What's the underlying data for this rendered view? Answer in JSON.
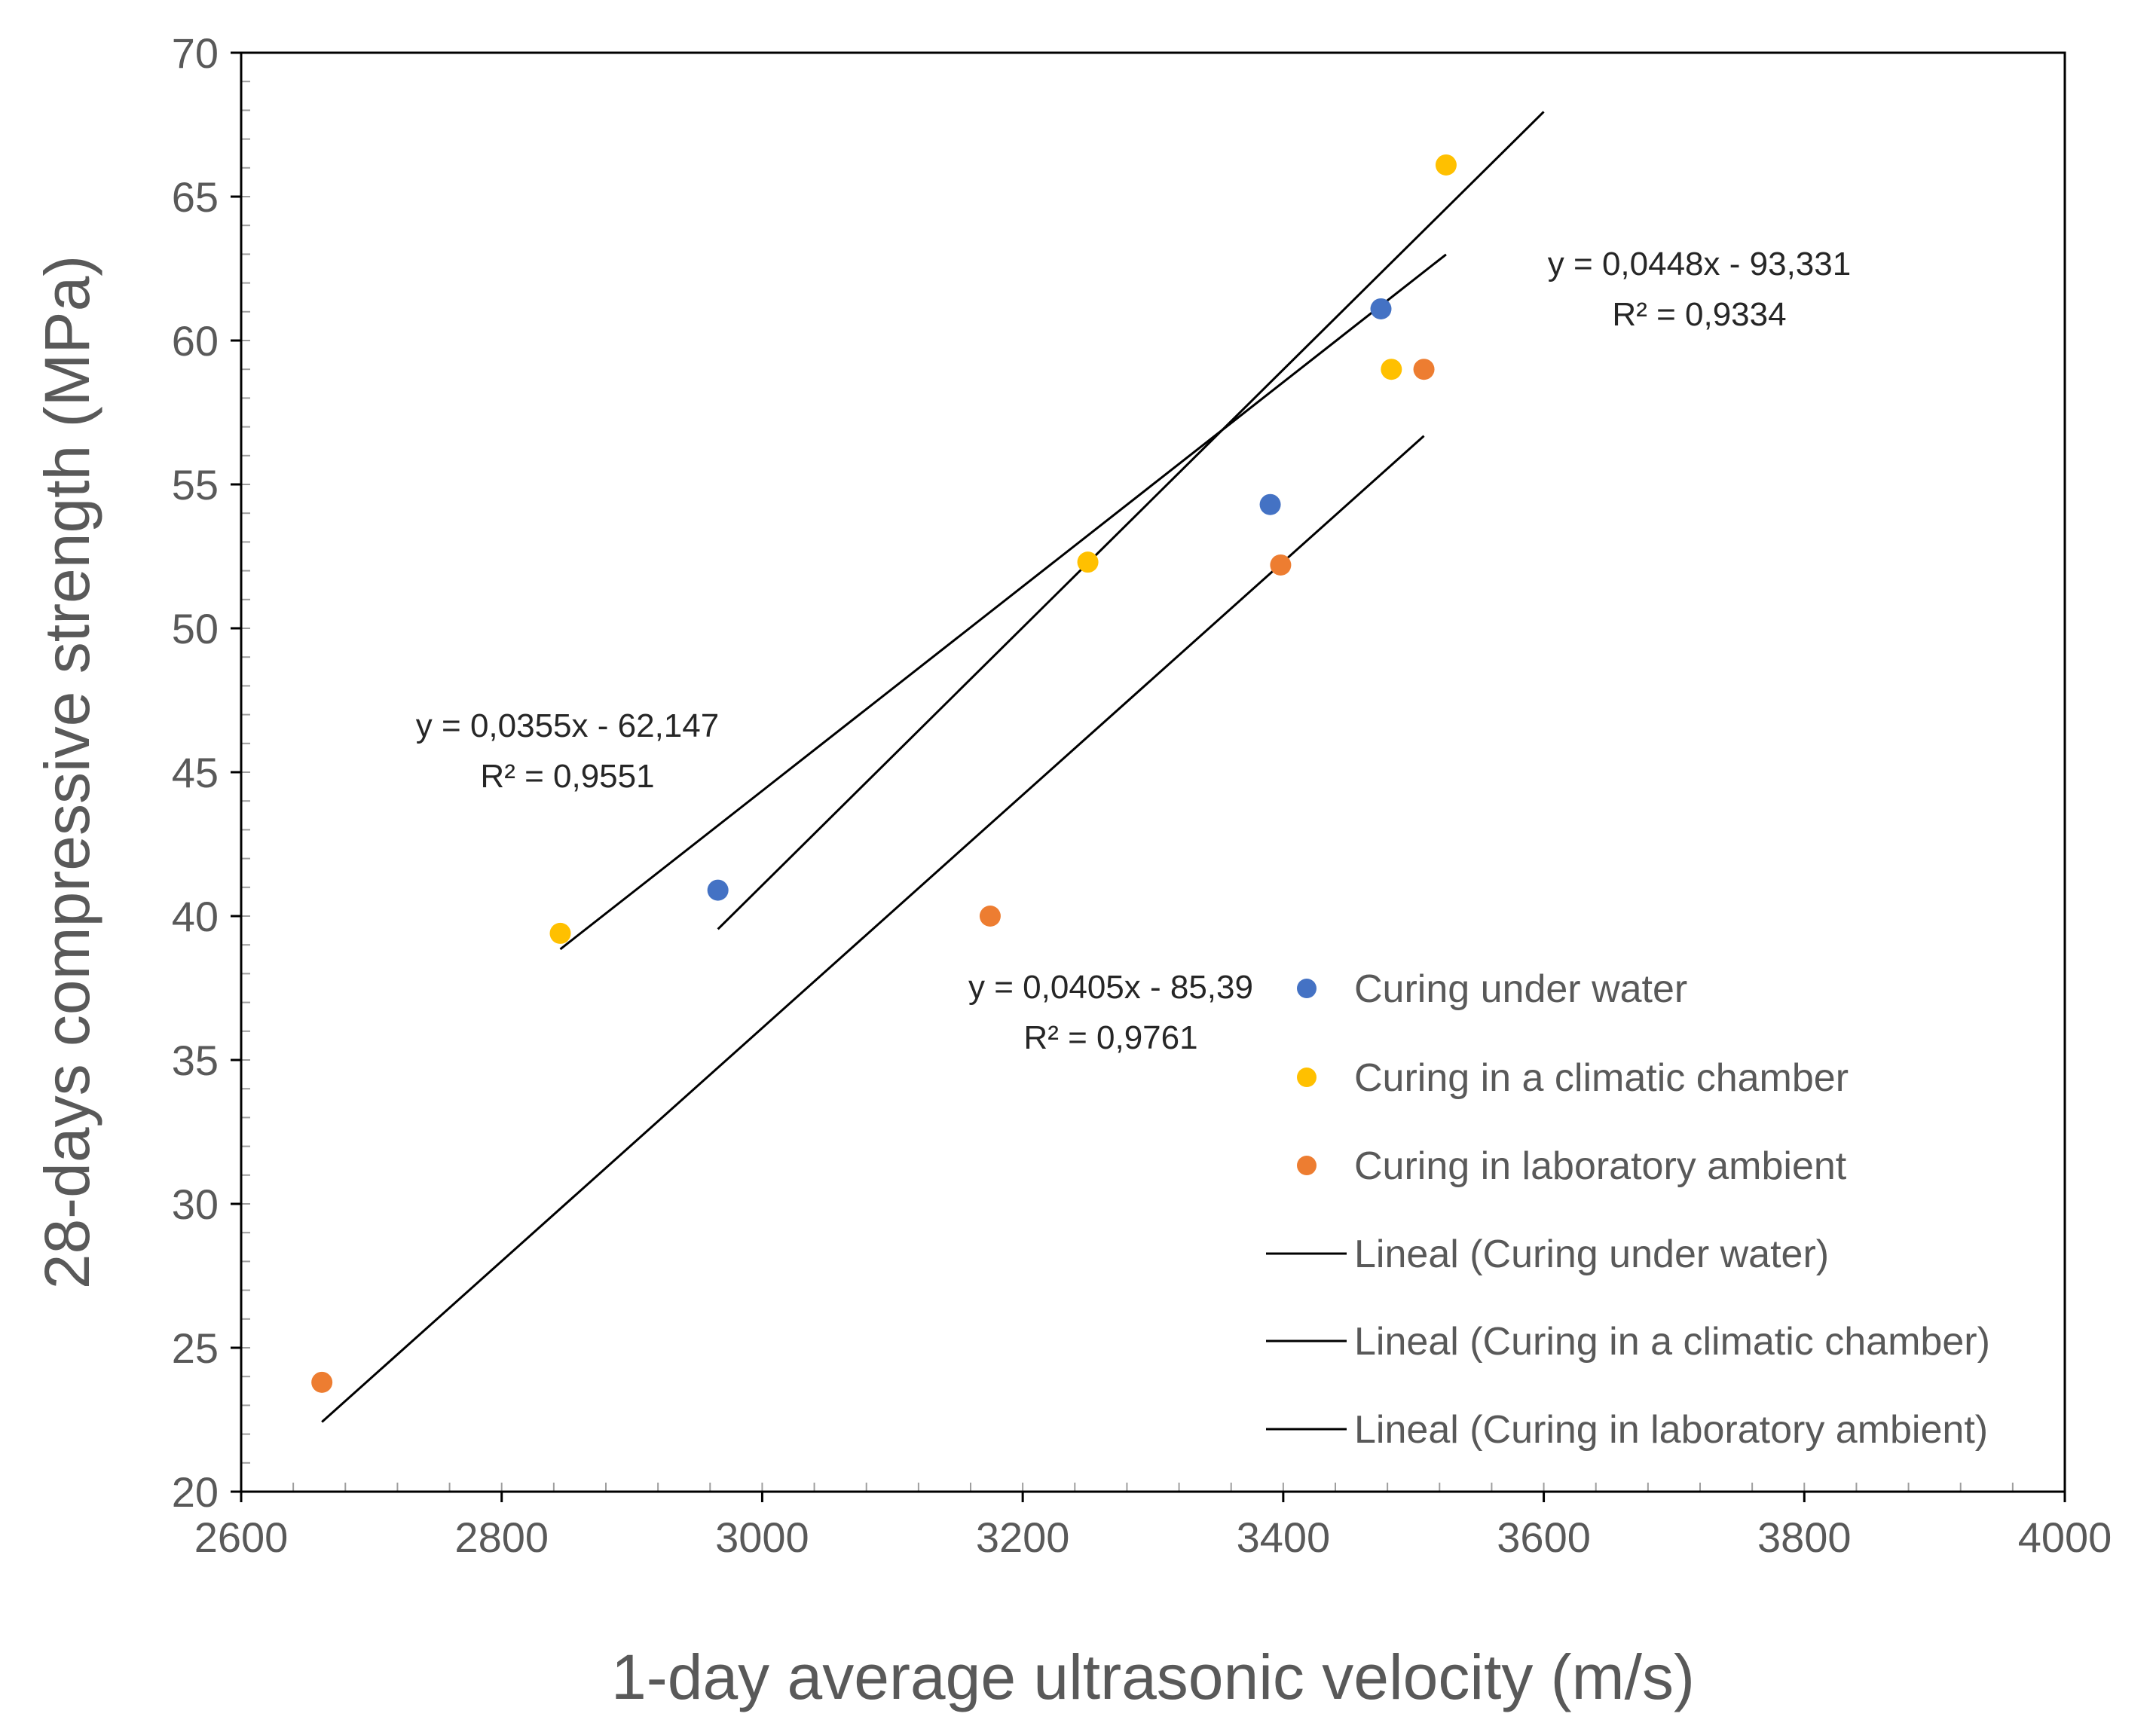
{
  "chart_data": {
    "type": "scatter",
    "title": "",
    "xlabel": "1-day average ultrasonic velocity (m/s)",
    "ylabel": "28-days compressive strength (MPa)",
    "xlim": [
      2600,
      4000
    ],
    "ylim": [
      20,
      70
    ],
    "x_ticks": [
      2600,
      2800,
      3000,
      3200,
      3400,
      3600,
      3800,
      4000
    ],
    "y_ticks": [
      20,
      25,
      30,
      35,
      40,
      45,
      50,
      55,
      60,
      65,
      70
    ],
    "x_tick_labels": [
      "2600",
      "2800",
      "3000",
      "3200",
      "3400",
      "3600",
      "3800",
      "4000"
    ],
    "y_tick_labels": [
      "20",
      "25",
      "30",
      "35",
      "40",
      "45",
      "50",
      "55",
      "60",
      "65",
      "70"
    ],
    "legend_position": "bottom-right",
    "series": [
      {
        "name": "Curing under water",
        "color": "#4472C4",
        "points": [
          [
            2966,
            40.9
          ],
          [
            3390,
            54.3
          ],
          [
            3475,
            61.1
          ]
        ]
      },
      {
        "name": "Curing in a climatic chamber",
        "color": "#FFC000",
        "points": [
          [
            2845,
            39.4
          ],
          [
            3250,
            52.3
          ],
          [
            3483,
            59.0
          ],
          [
            3525,
            66.1
          ]
        ]
      },
      {
        "name": "Curing in laboratory ambient",
        "color": "#ED7D31",
        "points": [
          [
            2662,
            23.8
          ],
          [
            3175,
            40.0
          ],
          [
            3398,
            52.2
          ],
          [
            3508,
            59.0
          ]
        ]
      }
    ],
    "trendlines": [
      {
        "name": "Lineal (Curing under water)",
        "color": "#000000",
        "x_range": [
          2966,
          3600
        ],
        "slope": 0.0448,
        "intercept": -93.331,
        "equation": "y = 0,0448x - 93,331",
        "r2": "R² = 0,9334"
      },
      {
        "name": "Lineal (Curing in a climatic chamber)",
        "color": "#000000",
        "x_range": [
          2845,
          3525
        ],
        "slope": 0.0355,
        "intercept": -62.147,
        "equation": "y = 0,0355x - 62,147",
        "r2": "R² = 0,9551"
      },
      {
        "name": "Lineal (Curing in laboratory ambient)",
        "color": "#000000",
        "x_range": [
          2662,
          3508
        ],
        "slope": 0.0405,
        "intercept": -85.39,
        "equation": "y = 0,0405x - 85,39",
        "r2": "R² = 0,9761"
      }
    ]
  }
}
